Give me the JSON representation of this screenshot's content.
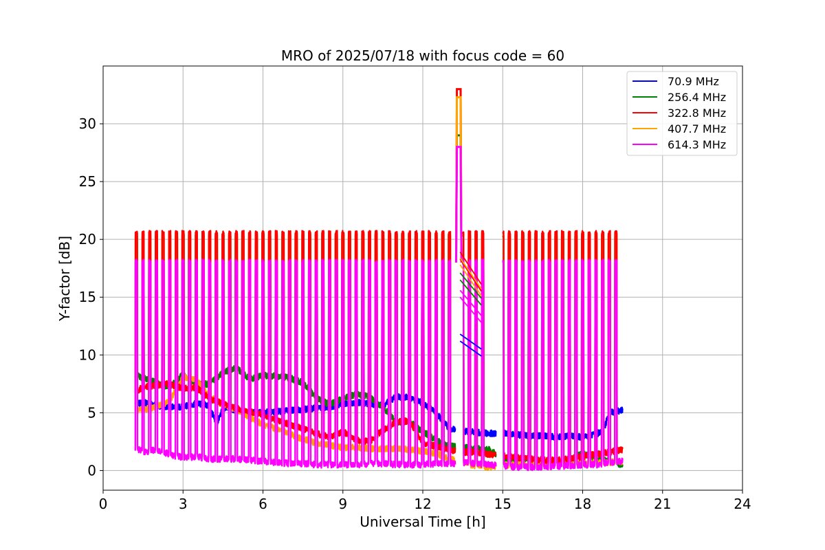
{
  "chart_data": {
    "type": "line",
    "title": "MRO of 2025/07/18 with focus code = 60",
    "xlabel": "Universal Time [h]",
    "ylabel": "Y-factor [dB]",
    "xlim": [
      0,
      24
    ],
    "ylim": [
      -1.7,
      35
    ],
    "xticks": [
      0,
      3,
      6,
      9,
      12,
      15,
      18,
      21,
      24
    ],
    "yticks": [
      0,
      5,
      10,
      15,
      20,
      25,
      30
    ],
    "grid": true,
    "legend_position": "top-right",
    "cal_spikes": {
      "ut_hours": [
        1.25,
        1.5,
        1.75,
        2.0,
        2.25,
        2.5,
        2.75,
        3.0,
        3.25,
        3.5,
        3.75,
        4.0,
        4.25,
        4.5,
        4.75,
        5.0,
        5.25,
        5.5,
        5.75,
        6.0,
        6.25,
        6.5,
        6.75,
        7.0,
        7.25,
        7.5,
        7.75,
        8.0,
        8.25,
        8.5,
        8.75,
        9.0,
        9.25,
        9.5,
        9.75,
        10.0,
        10.25,
        10.5,
        10.75,
        11.0,
        11.25,
        11.5,
        11.75,
        12.0,
        12.25,
        12.5,
        12.75,
        13.0,
        13.5,
        13.75,
        14.0,
        14.25,
        15.0,
        15.25,
        15.5,
        15.75,
        16.0,
        16.25,
        16.5,
        16.75,
        17.0,
        17.25,
        17.5,
        17.75,
        18.0,
        18.25,
        18.5,
        18.75,
        19.0,
        19.25
      ],
      "on_peaks_db": {
        "70.9 MHz": 18.0,
        "256.4 MHz": 20.3,
        "322.8 MHz": 20.6,
        "407.7 MHz": 20.4,
        "614.3 MHz": 18.1
      }
    },
    "series": [
      {
        "name": "70.9 MHz",
        "color": "#0000ff",
        "x": [
          1.2,
          1.5,
          2.0,
          2.5,
          3.0,
          3.5,
          4.0,
          4.25,
          4.5,
          5.0,
          5.5,
          6.0,
          6.5,
          7.0,
          7.5,
          8.0,
          8.5,
          9.0,
          9.5,
          10.0,
          10.5,
          11.0,
          11.5,
          12.0,
          12.5,
          13.0,
          13.5,
          14.0,
          14.5,
          15.0,
          15.5,
          16.0,
          16.5,
          17.0,
          17.5,
          18.0,
          18.5,
          18.8,
          19.0,
          19.5
        ],
        "y": [
          5.7,
          5.9,
          5.6,
          5.5,
          5.5,
          5.8,
          5.6,
          3.9,
          5.4,
          5.2,
          5.0,
          5.0,
          5.1,
          5.2,
          5.3,
          5.4,
          5.5,
          5.8,
          5.9,
          5.8,
          5.6,
          6.4,
          6.3,
          5.8,
          5.0,
          3.6,
          3.4,
          3.3,
          3.2,
          3.3,
          3.1,
          3.0,
          3.0,
          2.9,
          3.0,
          2.9,
          3.1,
          3.6,
          5.0,
          5.2
        ]
      },
      {
        "name": "256.4 MHz",
        "color": "#008000",
        "x": [
          1.2,
          1.5,
          2.0,
          2.5,
          3.0,
          3.5,
          4.0,
          4.5,
          5.0,
          5.5,
          6.0,
          6.5,
          7.0,
          7.5,
          8.0,
          8.5,
          9.0,
          9.5,
          10.0,
          10.5,
          11.0,
          11.5,
          12.0,
          12.5,
          13.0,
          13.5,
          14.0,
          14.5,
          15.0,
          15.5,
          16.0,
          16.5,
          17.0,
          17.5,
          18.0,
          18.5,
          19.0,
          19.5
        ],
        "y": [
          8.3,
          8.0,
          7.6,
          7.2,
          8.3,
          7.4,
          7.5,
          8.5,
          8.9,
          7.9,
          8.2,
          8.2,
          8.0,
          7.6,
          6.3,
          5.7,
          6.2,
          6.6,
          6.4,
          5.5,
          4.2,
          4.2,
          3.4,
          2.6,
          2.1,
          2.0,
          1.9,
          1.8,
          1.0,
          0.9,
          1.0,
          0.8,
          0.7,
          0.9,
          1.5,
          1.0,
          0.8,
          0.5
        ]
      },
      {
        "name": "322.8 MHz",
        "color": "#ff0000",
        "x": [
          1.2,
          1.5,
          2.0,
          2.5,
          3.0,
          3.5,
          4.0,
          4.5,
          5.0,
          5.5,
          6.0,
          6.5,
          7.0,
          7.5,
          8.0,
          8.5,
          9.0,
          9.5,
          10.0,
          10.5,
          11.0,
          11.5,
          12.0,
          12.5,
          13.0,
          13.5,
          14.0,
          14.5,
          15.0,
          15.5,
          16.0,
          16.5,
          17.0,
          17.5,
          18.0,
          18.5,
          19.0,
          19.5
        ],
        "y": [
          6.8,
          7.2,
          7.4,
          7.5,
          7.1,
          7.2,
          6.2,
          5.8,
          5.4,
          5.1,
          4.8,
          4.4,
          4.0,
          3.6,
          3.2,
          2.9,
          3.4,
          2.6,
          2.5,
          3.5,
          4.2,
          4.3,
          2.4,
          2.1,
          1.8,
          1.6,
          1.6,
          1.4,
          1.3,
          1.1,
          1.0,
          0.9,
          0.9,
          1.0,
          1.2,
          1.4,
          1.6,
          1.8
        ]
      },
      {
        "name": "407.7 MHz",
        "color": "#ffa500",
        "x": [
          1.2,
          1.5,
          2.0,
          2.5,
          3.0,
          3.5,
          4.0,
          4.5,
          5.0,
          5.5,
          6.0,
          6.5,
          7.0,
          7.5,
          8.0,
          8.5,
          9.0,
          9.5,
          10.0,
          10.5,
          11.0,
          11.5,
          12.0,
          12.5,
          13.0,
          13.5,
          14.0,
          14.5,
          15.0,
          15.5,
          16.0,
          16.5,
          17.0,
          17.5,
          18.0,
          18.5,
          19.0,
          19.5
        ],
        "y": [
          5.1,
          5.3,
          5.5,
          6.0,
          8.1,
          7.9,
          6.4,
          5.7,
          5.3,
          4.6,
          4.0,
          3.6,
          3.2,
          2.7,
          2.4,
          2.2,
          2.0,
          2.0,
          1.9,
          1.9,
          1.9,
          1.8,
          1.7,
          1.5,
          1.0,
          0.7,
          0.4,
          0.3,
          0.5,
          0.5,
          0.5,
          0.5,
          0.6,
          0.6,
          0.6,
          0.7,
          0.7,
          0.8
        ]
      },
      {
        "name": "614.3 MHz",
        "color": "#ff00ff",
        "x": [
          1.2,
          1.5,
          2.0,
          2.5,
          3.0,
          3.5,
          4.0,
          4.5,
          5.0,
          5.5,
          6.0,
          6.5,
          7.0,
          7.5,
          8.0,
          8.5,
          9.0,
          9.5,
          10.0,
          10.5,
          11.0,
          11.5,
          12.0,
          12.5,
          13.0,
          13.5,
          14.0,
          14.5,
          15.0,
          15.5,
          16.0,
          16.5,
          17.0,
          17.5,
          18.0,
          18.5,
          19.0,
          19.5
        ],
        "y": [
          2.0,
          1.6,
          1.8,
          1.4,
          1.1,
          1.2,
          1.0,
          1.0,
          1.0,
          0.9,
          0.8,
          0.7,
          0.6,
          0.6,
          0.5,
          0.5,
          0.5,
          0.5,
          0.6,
          0.6,
          0.5,
          0.5,
          0.5,
          0.6,
          0.6,
          0.7,
          0.6,
          0.5,
          0.4,
          0.3,
          0.3,
          0.3,
          0.4,
          0.4,
          0.5,
          0.5,
          0.7,
          0.8
        ]
      }
    ],
    "legend_labels": [
      "  70.9 MHz",
      "256.4 MHz",
      "322.8 MHz",
      "407.7 MHz",
      "614.3 MHz"
    ],
    "anomaly_13h": {
      "x_range": [
        13.25,
        13.45
      ],
      "peaks_db": {
        "322.8 MHz": 33.0,
        "407.7 MHz": 32.3,
        "256.4 MHz": 29.0,
        "614.3 MHz": 28.0
      },
      "decays": [
        {
          "series": "70.9 MHz",
          "x": [
            13.4,
            14.2
          ],
          "y": [
            11.2,
            9.9
          ]
        },
        {
          "series": "256.4 MHz",
          "x": [
            13.4,
            14.2
          ],
          "y": [
            16.5,
            14.3
          ]
        },
        {
          "series": "322.8 MHz",
          "x": [
            13.4,
            14.2
          ],
          "y": [
            18.3,
            15.5
          ]
        },
        {
          "series": "407.7 MHz",
          "x": [
            13.4,
            14.2
          ],
          "y": [
            17.8,
            15.1
          ]
        },
        {
          "series": "614.3 MHz",
          "x": [
            13.4,
            14.2
          ],
          "y": [
            15.0,
            12.8
          ]
        }
      ]
    }
  }
}
